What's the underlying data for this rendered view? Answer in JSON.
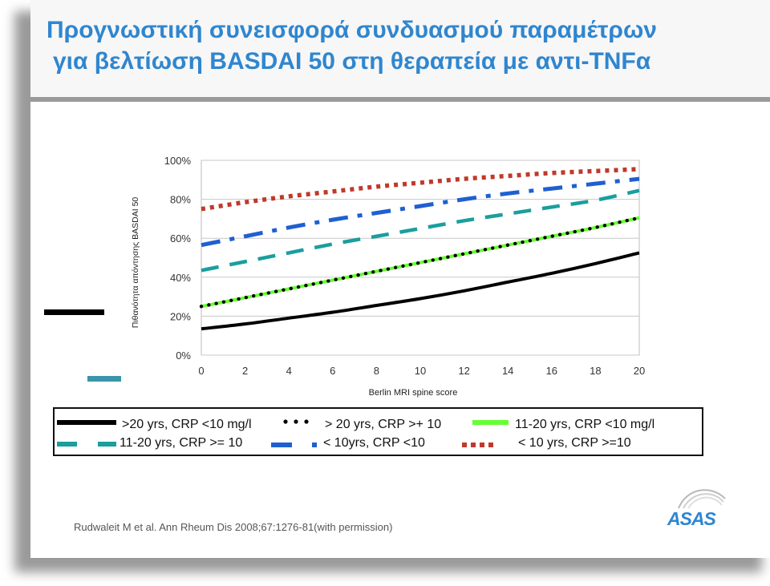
{
  "header": {
    "title_line1": "Προγνωστική συνεισφορά συνδυασμού παραμέτρων",
    "title_line2": "για βελτίωση BASDAI 50 στη θεραπεία με αντι-TNFα"
  },
  "colors": {
    "title": "#2f86cf",
    "black_line": "#000000",
    "green_line": "#66ff33",
    "teal_line": "#1a9e9e",
    "blue_line": "#1f5fd1",
    "red_line": "#c0392b"
  },
  "chart_data": {
    "type": "line",
    "xlabel": "Berlin MRI spine score",
    "ylabel": "Πιθανότητα απόντησης BASDAI 50",
    "xlim": [
      0,
      20
    ],
    "ylim": [
      0,
      100
    ],
    "x_ticks": [
      "0",
      "2",
      "4",
      "6",
      "8",
      "10",
      "12",
      "14",
      "16",
      "18",
      "20"
    ],
    "y_ticks": [
      "0%",
      "20%",
      "40%",
      "60%",
      "80%",
      "100%"
    ],
    "grid": "horizontal",
    "x": [
      0,
      2,
      4,
      6,
      8,
      10,
      12,
      14,
      16,
      18,
      20
    ],
    "series": [
      {
        "name": ">20 yrs, CRP <10 mg/l",
        "style": "solid",
        "color": "#000000",
        "values": [
          13.5,
          16,
          19,
          22,
          25.5,
          29,
          33,
          37.5,
          42,
          47,
          52.5
        ]
      },
      {
        "name": "> 20 yrs, CRP >+ 10",
        "style": "dotted",
        "color": "#000000",
        "values": [
          25,
          29.5,
          34,
          38.5,
          43,
          47.5,
          52,
          56.5,
          61,
          65.5,
          70.5
        ]
      },
      {
        "name": "11-20 yrs, CRP <10 mg/l",
        "style": "solid",
        "color": "#66ff33",
        "values": [
          25,
          29.5,
          34,
          38.5,
          43,
          47.5,
          52,
          56.5,
          61,
          65.5,
          70.5
        ]
      },
      {
        "name": "11-20 yrs, CRP >= 10",
        "style": "dashed",
        "color": "#1a9e9e",
        "values": [
          43.5,
          48,
          52.5,
          57,
          61,
          65,
          69,
          72.5,
          76,
          79.5,
          84.5
        ]
      },
      {
        "name": "< 10yrs, CRP <10",
        "style": "dashdot",
        "color": "#1f5fd1",
        "values": [
          56.5,
          61,
          65.5,
          69.5,
          73,
          76.5,
          80,
          83,
          85.5,
          88,
          90.5
        ]
      },
      {
        "name": "< 10 yrs, CRP >=10",
        "style": "dotted-square",
        "color": "#c0392b",
        "values": [
          75,
          78.5,
          81.5,
          84,
          86.5,
          88.5,
          90.5,
          92,
          93.5,
          94.5,
          95.5
        ]
      }
    ]
  },
  "legend": {
    "item1": ">20 yrs, CRP <10 mg/l",
    "item2": "> 20 yrs, CRP >+ 10",
    "item3": "11-20 yrs, CRP <10 mg/l",
    "item4": "11-20 yrs, CRP >= 10",
    "item5": "< 10yrs, CRP <10",
    "item6": "< 10 yrs, CRP >=10"
  },
  "footer": {
    "citation": "Rudwaleit M et al. Ann Rheum Dis 2008;67:1276-81(with permission)",
    "logo_text": "ASAS"
  }
}
